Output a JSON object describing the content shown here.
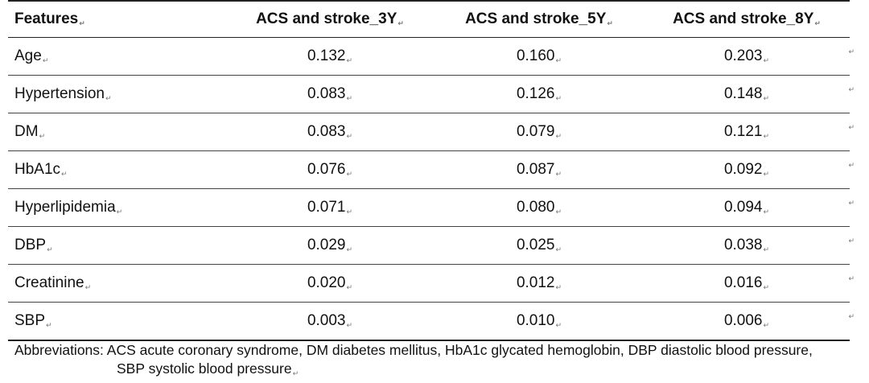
{
  "table": {
    "headers": [
      "Features",
      "ACS and stroke_3Y",
      "ACS and stroke_5Y",
      "ACS and stroke_8Y"
    ],
    "rows": [
      {
        "feature": "Age",
        "y3": "0.132",
        "y5": "0.160",
        "y8": "0.203"
      },
      {
        "feature": "Hypertension",
        "y3": "0.083",
        "y5": "0.126",
        "y8": "0.148"
      },
      {
        "feature": "DM",
        "y3": "0.083",
        "y5": "0.079",
        "y8": "0.121"
      },
      {
        "feature": "HbA1c",
        "y3": "0.076",
        "y5": "0.087",
        "y8": "0.092"
      },
      {
        "feature": "Hyperlipidemia",
        "y3": "0.071",
        "y5": "0.080",
        "y8": "0.094"
      },
      {
        "feature": "DBP",
        "y3": "0.029",
        "y5": "0.025",
        "y8": "0.038"
      },
      {
        "feature": "Creatinine",
        "y3": "0.020",
        "y5": "0.012",
        "y8": "0.016"
      },
      {
        "feature": "SBP",
        "y3": "0.003",
        "y5": "0.010",
        "y8": "0.006"
      }
    ]
  },
  "footnote": {
    "line1": "Abbreviations: ACS acute coronary syndrome, DM diabetes mellitus, HbA1c glycated hemoglobin, DBP diastolic blood pressure,",
    "line2": "SBP systolic blood pressure"
  },
  "paragraph_mark": "↵"
}
